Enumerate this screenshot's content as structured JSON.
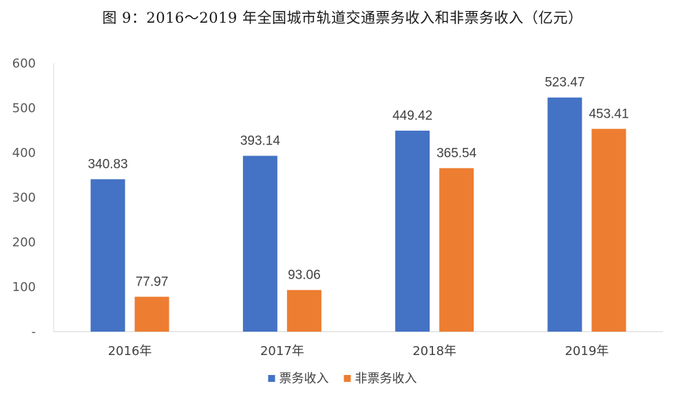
{
  "title": "图 9：2016～2019 年全国城市轨道交通票务收入和非票务收入（亿元）",
  "chart_data": {
    "type": "bar",
    "categories": [
      "2016年",
      "2017年",
      "2018年",
      "2019年"
    ],
    "series": [
      {
        "name": "票务收入",
        "values": [
          340.83,
          393.14,
          449.42,
          523.47
        ],
        "color": "#4472C4"
      },
      {
        "name": "非票务收入",
        "values": [
          77.97,
          93.06,
          365.54,
          453.41
        ],
        "color": "#ED7D31"
      }
    ],
    "y_ticks": [
      "-",
      "100",
      "200",
      "300",
      "400",
      "500",
      "600"
    ],
    "ylim": [
      0,
      600
    ],
    "grid": false,
    "legend_position": "bottom-center",
    "xlabel": "",
    "ylabel": ""
  }
}
